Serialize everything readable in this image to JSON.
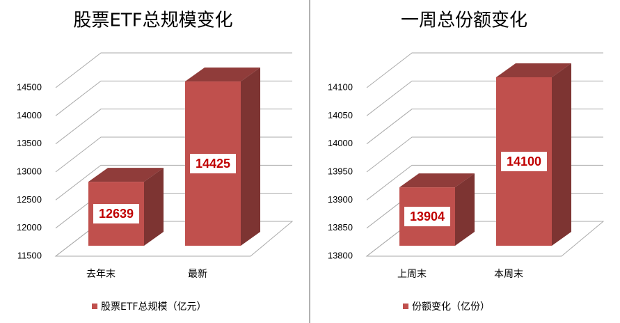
{
  "chart_data": [
    {
      "type": "bar",
      "title": "股票ETF总规模变化",
      "categories": [
        "去年末",
        "最新"
      ],
      "series": [
        {
          "name": "股票ETF总规模（亿元）",
          "color": "#c0504d",
          "values": [
            12639,
            14425
          ]
        }
      ],
      "ylim": [
        11500,
        14500
      ],
      "yticks": [
        11500,
        12000,
        12500,
        13000,
        13500,
        14000,
        14500
      ],
      "grid": true
    },
    {
      "type": "bar",
      "title": "一周总份额变化",
      "categories": [
        "上周末",
        "本周末"
      ],
      "series": [
        {
          "name": "份额变化（亿份）",
          "color": "#c0504d",
          "values": [
            13904,
            14100
          ]
        }
      ],
      "ylim": [
        13800,
        14100
      ],
      "yticks": [
        13800,
        13850,
        13900,
        13950,
        14000,
        14050,
        14100
      ],
      "grid": true
    }
  ]
}
